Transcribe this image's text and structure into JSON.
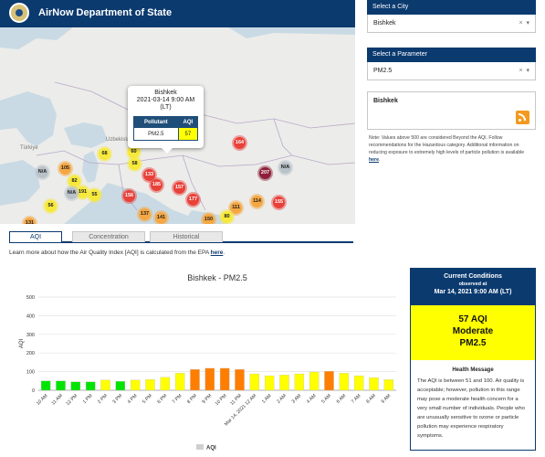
{
  "header": {
    "title": "AirNow Department of State",
    "seal_icon": "us-state-department-seal"
  },
  "map": {
    "country_labels": [
      "Türkiye",
      "Uzbekistan"
    ],
    "popup": {
      "city": "Bishkek",
      "date": "2021-03-14 9:00 AM",
      "tz": "(LT)",
      "col_pollutant": "Pollutant",
      "col_aqi": "AQI",
      "pollutant": "PM2.5",
      "aqi": "57"
    },
    "markers": [
      {
        "label": "72"
      },
      {
        "label": "87"
      },
      {
        "label": "61"
      },
      {
        "label": "60"
      },
      {
        "label": "68"
      },
      {
        "label": "58"
      },
      {
        "label": "105"
      },
      {
        "label": "82"
      },
      {
        "label": "191"
      },
      {
        "label": "55"
      },
      {
        "label": "56"
      },
      {
        "label": "N/A"
      },
      {
        "label": "N/A"
      },
      {
        "label": "156"
      },
      {
        "label": "185"
      },
      {
        "label": "133"
      },
      {
        "label": "157"
      },
      {
        "label": "177"
      },
      {
        "label": "137"
      },
      {
        "label": "141"
      },
      {
        "label": "150"
      },
      {
        "label": "114"
      },
      {
        "label": "111"
      },
      {
        "label": "80"
      },
      {
        "label": "164"
      },
      {
        "label": "207"
      },
      {
        "label": "N/A"
      },
      {
        "label": "155"
      },
      {
        "label": "131"
      }
    ]
  },
  "city_select": {
    "header": "Select a City",
    "value": "Bishkek",
    "clear": "×",
    "arrow": "▾"
  },
  "param_select": {
    "header": "Select a Parameter",
    "value": "PM2.5",
    "clear": "×",
    "arrow": "▾"
  },
  "city_box": {
    "label": "Bishkek",
    "rss_icon": "rss-feed-icon"
  },
  "note": {
    "text": "Note: Values above 500 are considered Beyond the AQI. Follow recommendations for the Hazardous category. Additional information on reducing exposure to extremely high levels of particle pollution is available ",
    "link": "here",
    "end": "."
  },
  "tabs": [
    {
      "label": "AQI"
    },
    {
      "label": "Concentration"
    },
    {
      "label": "Historical"
    }
  ],
  "learn": {
    "text": "Learn more about how the Air Quality Index [AQI] is calculated from the EPA ",
    "link": "here",
    "end": "."
  },
  "current": {
    "title": "Current Conditions",
    "observed": "observed at",
    "date": "Mar 14, 2021 9:00 AM (LT)",
    "aqi_line": "57 AQI",
    "category": "Moderate",
    "pollutant": "PM2.5",
    "health_title": "Health Message",
    "health_text": "The AQI is between 51 and 100. Air quality is acceptable; however, pollution in this range may pose a moderate health concern for a very small number of individuals. People who are unusually sensitive to ozone or particle pollution may experience respiratory symptoms."
  },
  "chart_data": {
    "type": "bar",
    "title": "Bishkek - PM2.5",
    "ylabel": "AQI",
    "xlabel": "",
    "ylim": [
      0,
      500
    ],
    "yticks": [
      0,
      100,
      200,
      300,
      400,
      500
    ],
    "grid": true,
    "legend": {
      "placement": "bottom",
      "entries": [
        "AQI"
      ]
    },
    "categories": [
      "10 AM",
      "11 AM",
      "12 PM",
      "1 PM",
      "2 PM",
      "3 PM",
      "4 PM",
      "5 PM",
      "6 PM",
      "7 PM",
      "8 PM",
      "9 PM",
      "10 PM",
      "11 PM",
      "Mar 14, 2021 12 AM",
      "1 AM",
      "2 AM",
      "3 AM",
      "4 AM",
      "5 AM",
      "6 AM",
      "7 AM",
      "8 AM",
      "9 AM"
    ],
    "values": [
      50,
      50,
      45,
      45,
      55,
      48,
      55,
      58,
      70,
      92,
      112,
      118,
      118,
      112,
      88,
      78,
      82,
      88,
      98,
      102,
      92,
      78,
      68,
      57
    ],
    "colors": [
      "#00e400",
      "#ffff00",
      "#ff7e00"
    ],
    "color_thresholds": [
      50,
      100
    ]
  }
}
